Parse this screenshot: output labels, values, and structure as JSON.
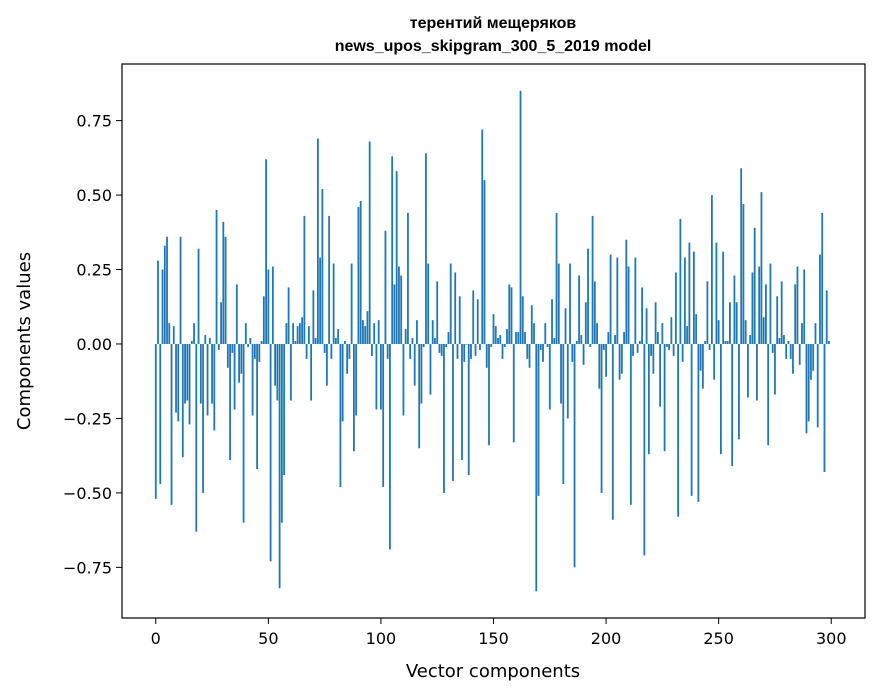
{
  "chart_data": {
    "type": "bar",
    "title": [
      "терентий мещеряков",
      "news_upos_skipgram_300_5_2019 model"
    ],
    "xlabel": "Vector components",
    "ylabel": "Components values",
    "xlim": [
      -15,
      315
    ],
    "ylim": [
      -0.92,
      0.94
    ],
    "xticks": [
      0,
      50,
      100,
      150,
      200,
      250,
      300
    ],
    "yticks": [
      -0.75,
      -0.5,
      -0.25,
      0.0,
      0.25,
      0.5,
      0.75
    ],
    "ytick_labels": [
      "−0.75",
      "−0.50",
      "−0.25",
      "0.00",
      "0.25",
      "0.50",
      "0.75"
    ],
    "grid": false,
    "bar_color": "#1f77b4",
    "x_start": 0,
    "values": [
      -0.52,
      0.28,
      -0.47,
      0.25,
      0.33,
      0.36,
      0.07,
      -0.54,
      0.06,
      -0.23,
      -0.26,
      0.36,
      -0.38,
      -0.2,
      -0.19,
      -0.27,
      0.01,
      0.07,
      -0.63,
      0.32,
      -0.2,
      -0.5,
      0.03,
      -0.24,
      0.02,
      -0.2,
      -0.29,
      0.45,
      -0.02,
      0.14,
      0.41,
      0.36,
      -0.08,
      -0.39,
      -0.03,
      -0.22,
      0.2,
      -0.13,
      -0.1,
      -0.6,
      0.07,
      -0.01,
      0.02,
      -0.24,
      -0.05,
      -0.42,
      -0.06,
      0.01,
      0.16,
      0.62,
      0.25,
      -0.73,
      0.26,
      -0.14,
      -0.19,
      -0.82,
      -0.6,
      -0.44,
      0.07,
      0.19,
      -0.19,
      0.07,
      0.01,
      0.06,
      0.07,
      0.09,
      0.43,
      -0.05,
      0.06,
      -0.19,
      0.18,
      0.02,
      0.69,
      0.29,
      0.52,
      -0.03,
      -0.14,
      0.43,
      -0.05,
      0.27,
      0.02,
      0.05,
      -0.48,
      -0.26,
      0.01,
      -0.1,
      -0.05,
      0.27,
      -0.36,
      -0.24,
      0.46,
      0.48,
      0.08,
      0.06,
      0.11,
      0.68,
      -0.04,
      0.07,
      -0.22,
      0.08,
      -0.22,
      -0.48,
      0.38,
      -0.05,
      -0.69,
      0.63,
      0.2,
      0.58,
      0.26,
      0.23,
      -0.24,
      0.05,
      0.44,
      -0.05,
      0.02,
      -0.14,
      0.08,
      -0.35,
      -0.2,
      -0.01,
      0.64,
      0.27,
      -0.17,
      0.08,
      0.02,
      0.21,
      -0.03,
      -0.04,
      -0.5,
      -0.01,
      0.04,
      0.27,
      -0.46,
      0.24,
      -0.05,
      0.16,
      -0.39,
      -0.06,
      0.0,
      -0.44,
      -0.05,
      0.18,
      -0.04,
      0.15,
      -0.02,
      0.72,
      0.55,
      -0.08,
      -0.34,
      -0.01,
      0.1,
      0.06,
      0.02,
      0.03,
      -0.05,
      -0.01,
      0.05,
      0.2,
      0.19,
      -0.33,
      0.04,
      0.04,
      0.85,
      0.16,
      0.04,
      -0.05,
      -0.08,
      0.13,
      0.07,
      -0.83,
      -0.51,
      -0.02,
      -0.06,
      0.07,
      -0.01,
      -0.22,
      0.15,
      0.02,
      0.44,
      0.27,
      -0.2,
      -0.47,
      0.12,
      -0.25,
      0.27,
      -0.06,
      -0.75,
      0.01,
      0.23,
      0.03,
      -0.07,
      0.14,
      0.32,
      -0.01,
      0.43,
      0.21,
      0.07,
      -0.15,
      -0.5,
      -0.02,
      -0.11,
      0.04,
      0.3,
      -0.59,
      0.03,
      0.29,
      -0.12,
      -0.1,
      0.04,
      0.35,
      0.26,
      -0.54,
      -0.04,
      0.29,
      -0.03,
      0.01,
      0.19,
      -0.71,
      0.12,
      -0.37,
      -0.04,
      -0.1,
      0.14,
      0.04,
      -0.21,
      0.07,
      -0.36,
      -0.01,
      -0.02,
      0.09,
      -0.04,
      0.24,
      -0.58,
      0.42,
      -0.06,
      0.29,
      0.06,
      0.34,
      -0.51,
      0.31,
      0.1,
      -0.53,
      -0.09,
      -0.15,
      0.01,
      0.21,
      -0.02,
      0.5,
      -0.12,
      0.34,
      0.08,
      -0.37,
      0.31,
      0.01,
      0.01,
      0.14,
      -0.41,
      0.23,
      0.14,
      -0.32,
      0.59,
      0.47,
      0.08,
      -0.18,
      0.03,
      0.24,
      0.39,
      -0.19,
      0.26,
      0.51,
      0.09,
      0.2,
      -0.34,
      0.27,
      -0.03,
      -0.17,
      0.16,
      0.02,
      0.21,
      0.03,
      -0.05,
      0.01,
      -0.05,
      -0.1,
      0.2,
      0.26,
      -0.07,
      0.07,
      0.25,
      -0.3,
      -0.26,
      -0.12,
      -0.09,
      0.07,
      -0.28,
      0.3,
      0.44,
      -0.43,
      0.18,
      0.01
    ]
  }
}
